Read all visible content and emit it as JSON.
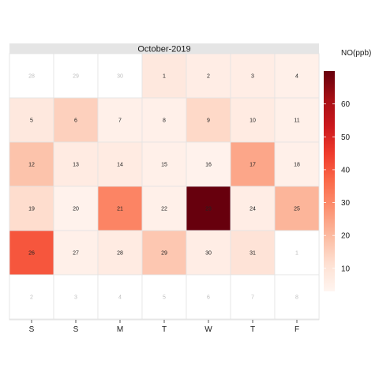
{
  "chart_data": {
    "type": "heatmap",
    "title": "October-2019",
    "legend_title": "NO(ppb)",
    "weekday_labels": [
      "S",
      "S",
      "M",
      "T",
      "W",
      "T",
      "F"
    ],
    "color_scale": {
      "min": 3,
      "max": 70,
      "low_color": "#fff5f0",
      "high_color": "#67000d"
    },
    "legend_ticks": [
      10,
      20,
      30,
      40,
      50,
      60
    ],
    "legend_position": "right",
    "leading_days": [
      "28",
      "29",
      "30"
    ],
    "month_days": [
      {
        "day": "1",
        "value": 8
      },
      {
        "day": "2",
        "value": 6
      },
      {
        "day": "3",
        "value": 6
      },
      {
        "day": "4",
        "value": 5
      },
      {
        "day": "5",
        "value": 8
      },
      {
        "day": "6",
        "value": 15
      },
      {
        "day": "7",
        "value": 5
      },
      {
        "day": "8",
        "value": 5
      },
      {
        "day": "9",
        "value": 13
      },
      {
        "day": "10",
        "value": 7
      },
      {
        "day": "11",
        "value": 5
      },
      {
        "day": "12",
        "value": 18
      },
      {
        "day": "13",
        "value": 7
      },
      {
        "day": "14",
        "value": 7
      },
      {
        "day": "15",
        "value": 5
      },
      {
        "day": "16",
        "value": 4
      },
      {
        "day": "17",
        "value": 24
      },
      {
        "day": "18",
        "value": 5
      },
      {
        "day": "19",
        "value": 12
      },
      {
        "day": "20",
        "value": 4
      },
      {
        "day": "21",
        "value": 31
      },
      {
        "day": "22",
        "value": 5
      },
      {
        "day": "23",
        "value": 70
      },
      {
        "day": "24",
        "value": 6
      },
      {
        "day": "25",
        "value": 21
      },
      {
        "day": "26",
        "value": 40
      },
      {
        "day": "27",
        "value": 5
      },
      {
        "day": "28",
        "value": 7
      },
      {
        "day": "29",
        "value": 17
      },
      {
        "day": "30",
        "value": 6
      },
      {
        "day": "31",
        "value": 10
      }
    ],
    "trailing_days": [
      "1",
      "2",
      "3",
      "4",
      "5",
      "6",
      "7",
      "8"
    ]
  }
}
